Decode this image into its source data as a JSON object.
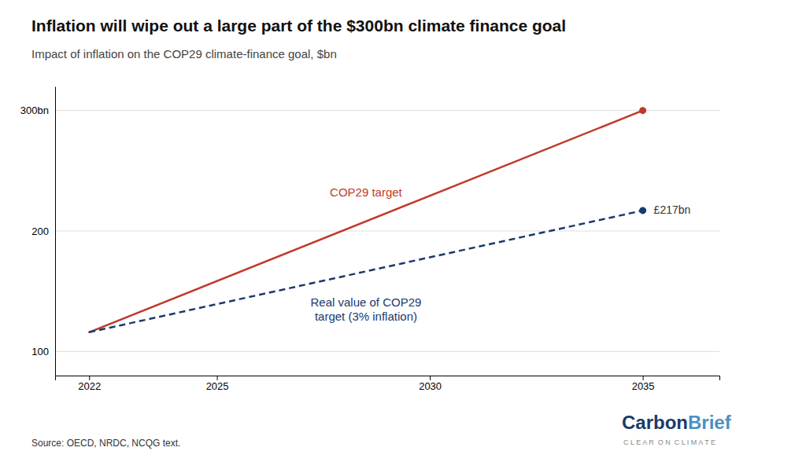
{
  "chart_data": {
    "type": "line",
    "title": "Inflation will wipe out a large part of the $300bn climate finance goal",
    "subtitle": "Impact of inflation on the COP29 climate-finance goal, $bn",
    "source": "Source: OECD, NRDC, NCQG text.",
    "x": [
      2022,
      2035
    ],
    "series": [
      {
        "name": "COP29 target",
        "color": "#c0392b",
        "line_style": "solid",
        "values": [
          116,
          300
        ]
      },
      {
        "name": "Real value of COP29\ntarget (3% inflation)",
        "color": "#1a3a6b",
        "line_style": "dashed",
        "values": [
          116,
          217
        ]
      }
    ],
    "xlim": [
      2021.2,
      2036.8
    ],
    "xticks": [
      2022,
      2025,
      2030,
      2035
    ],
    "ylim": [
      80,
      320
    ],
    "yticks": [
      100,
      200,
      {
        "value": 300,
        "label": "300bn"
      }
    ],
    "grid": true,
    "annotations": [
      {
        "text": "£217bn",
        "y": 217
      }
    ],
    "logo": [
      {
        "text": "Carbon",
        "color": "#1a3a6b"
      },
      {
        "text": "Brief",
        "color": "#4a90c4"
      }
    ],
    "logo_tagline": "C L E A R  O N  C L I M A T E"
  }
}
